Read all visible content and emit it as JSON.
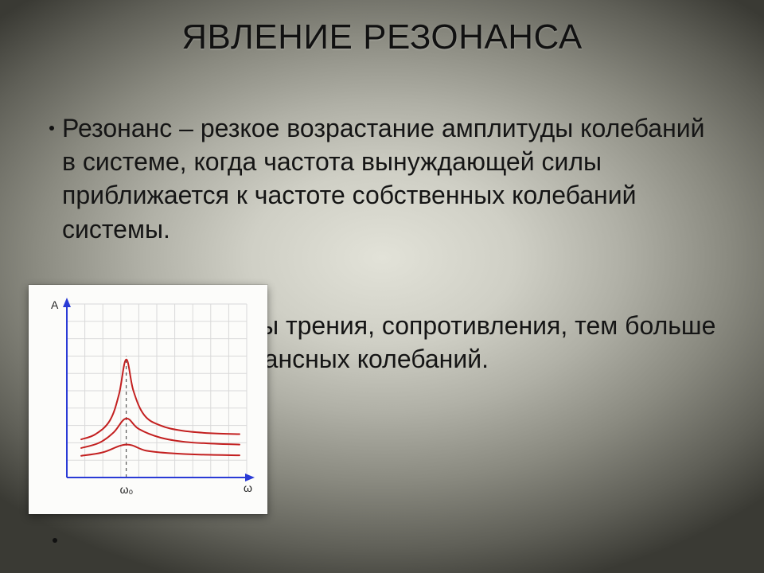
{
  "title": "ЯВЛЕНИЕ РЕЗОНАНСА",
  "bullets": [
    "Резонанс – резкое возрастание амплитуды колебаний в системе, когда частота вынуждающей силы приближается к частоте собственных колебаний системы.",
    "Чем меньше силы трения, сопротивления, тем больше амплитуда резонансных колебаний."
  ],
  "chart": {
    "type": "line",
    "y_label": "A",
    "x_label": "ω",
    "x_marker_label": "ω₀",
    "background_color": "#fcfcfa",
    "grid_color": "#d9d9d9",
    "axis_color": "#2a3bd6",
    "curve_color": "#c32020",
    "dash_color": "#555555",
    "label_color": "#222222",
    "label_fontsize": 14,
    "curve_width": 2,
    "axis_width": 2,
    "xlim": [
      0,
      10
    ],
    "ylim": [
      0,
      10
    ],
    "x_marker": 3.3,
    "grid_step": 1,
    "curves": [
      {
        "points": [
          [
            0.8,
            2.2
          ],
          [
            1.6,
            2.5
          ],
          [
            2.4,
            3.3
          ],
          [
            2.9,
            4.8
          ],
          [
            3.3,
            6.8
          ],
          [
            3.7,
            5.0
          ],
          [
            4.3,
            3.6
          ],
          [
            5.2,
            3.0
          ],
          [
            6.4,
            2.7
          ],
          [
            8.0,
            2.55
          ],
          [
            9.6,
            2.5
          ]
        ]
      },
      {
        "points": [
          [
            0.8,
            1.7
          ],
          [
            1.8,
            2.0
          ],
          [
            2.6,
            2.6
          ],
          [
            3.3,
            3.4
          ],
          [
            4.0,
            2.8
          ],
          [
            5.2,
            2.3
          ],
          [
            6.6,
            2.05
          ],
          [
            8.2,
            1.95
          ],
          [
            9.6,
            1.9
          ]
        ]
      },
      {
        "points": [
          [
            0.8,
            1.25
          ],
          [
            2.0,
            1.45
          ],
          [
            3.3,
            1.9
          ],
          [
            4.4,
            1.55
          ],
          [
            5.8,
            1.4
          ],
          [
            7.4,
            1.32
          ],
          [
            9.6,
            1.28
          ]
        ]
      }
    ]
  }
}
